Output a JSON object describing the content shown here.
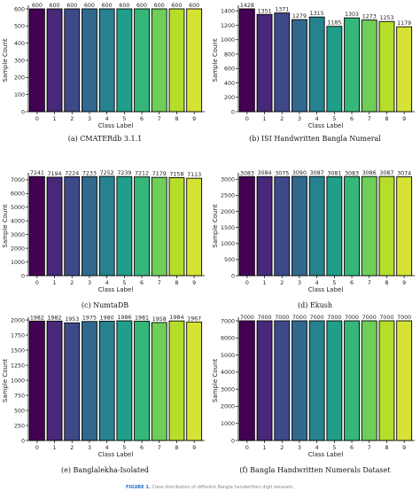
{
  "chart_data": [
    {
      "type": "bar",
      "caption": "(a) CMATERdb 3.1.1",
      "categories": [
        "0",
        "1",
        "2",
        "3",
        "4",
        "5",
        "6",
        "7",
        "8",
        "9"
      ],
      "values": [
        600,
        600,
        600,
        600,
        600,
        600,
        600,
        600,
        600,
        600
      ],
      "xlabel": "Class Label",
      "ylabel": "Sample Count",
      "ylim": [
        0,
        600
      ],
      "yticks": [
        0,
        100,
        200,
        300,
        400,
        500,
        600
      ],
      "grid": false,
      "colormap": "viridis"
    },
    {
      "type": "bar",
      "caption": "(b) ISI Handwritten Bangla Numeral",
      "categories": [
        "0",
        "1",
        "2",
        "3",
        "4",
        "5",
        "6",
        "7",
        "8",
        "9"
      ],
      "values": [
        1428,
        1351,
        1371,
        1279,
        1315,
        1185,
        1303,
        1273,
        1253,
        1179
      ],
      "xlabel": "Class Label",
      "ylabel": "Sample Count",
      "ylim": [
        0,
        1428
      ],
      "yticks": [
        0,
        200,
        400,
        600,
        800,
        1000,
        1200,
        1400
      ],
      "grid": false,
      "colormap": "viridis"
    },
    {
      "type": "bar",
      "caption": "(c) NumtaDB",
      "categories": [
        "0",
        "1",
        "2",
        "3",
        "4",
        "5",
        "6",
        "7",
        "8",
        "9"
      ],
      "values": [
        7241,
        7194,
        7224,
        7233,
        7252,
        7239,
        7212,
        7179,
        7158,
        7113
      ],
      "xlabel": "Class Label",
      "ylabel": "Sample Count",
      "ylim": [
        0,
        7252
      ],
      "yticks": [
        0,
        1000,
        2000,
        3000,
        4000,
        5000,
        6000,
        7000
      ],
      "grid": false,
      "colormap": "viridis"
    },
    {
      "type": "bar",
      "caption": "(d) Ekush",
      "categories": [
        "0",
        "1",
        "2",
        "3",
        "4",
        "5",
        "6",
        "7",
        "8",
        "9"
      ],
      "values": [
        3083,
        3084,
        3075,
        3090,
        3087,
        3081,
        3083,
        3086,
        3087,
        3074
      ],
      "xlabel": "Class Label",
      "ylabel": "Sample Count",
      "ylim": [
        0,
        3090
      ],
      "yticks": [
        0,
        500,
        1000,
        1500,
        2000,
        2500,
        3000
      ],
      "grid": false,
      "colormap": "viridis"
    },
    {
      "type": "bar",
      "caption": "(e) Banglalekha-Isolated",
      "categories": [
        "0",
        "1",
        "2",
        "3",
        "4",
        "5",
        "6",
        "7",
        "8",
        "9"
      ],
      "values": [
        1982,
        1982,
        1953,
        1975,
        1980,
        1986,
        1981,
        1958,
        1984,
        1967
      ],
      "xlabel": "Class Label",
      "ylabel": "Sample Count",
      "ylim": [
        0,
        1986
      ],
      "yticks": [
        0,
        250,
        500,
        750,
        1000,
        1250,
        1500,
        1750,
        2000
      ],
      "grid": false,
      "colormap": "viridis"
    },
    {
      "type": "bar",
      "caption": "(f) Bangla Handwritten Numerals Dataset",
      "categories": [
        "0",
        "1",
        "2",
        "3",
        "4",
        "5",
        "6",
        "7",
        "8",
        "9"
      ],
      "values": [
        7000,
        7000,
        7000,
        7000,
        7000,
        7000,
        7000,
        7000,
        7000,
        7000
      ],
      "xlabel": "Class Label",
      "ylabel": "Sample Count",
      "ylim": [
        0,
        7000
      ],
      "yticks": [
        0,
        1000,
        2000,
        3000,
        4000,
        5000,
        6000,
        7000
      ],
      "grid": false,
      "colormap": "viridis"
    }
  ],
  "bar_colors": [
    "#440154",
    "#482878",
    "#3e4989",
    "#31688e",
    "#26828e",
    "#1f9e89",
    "#35b779",
    "#6ece58",
    "#b5de2b",
    "#d6e335"
  ],
  "figure_caption": {
    "lead": "FIGURE 1.",
    "text": "Class distribution of different Bangla handwritten digit datasets."
  }
}
